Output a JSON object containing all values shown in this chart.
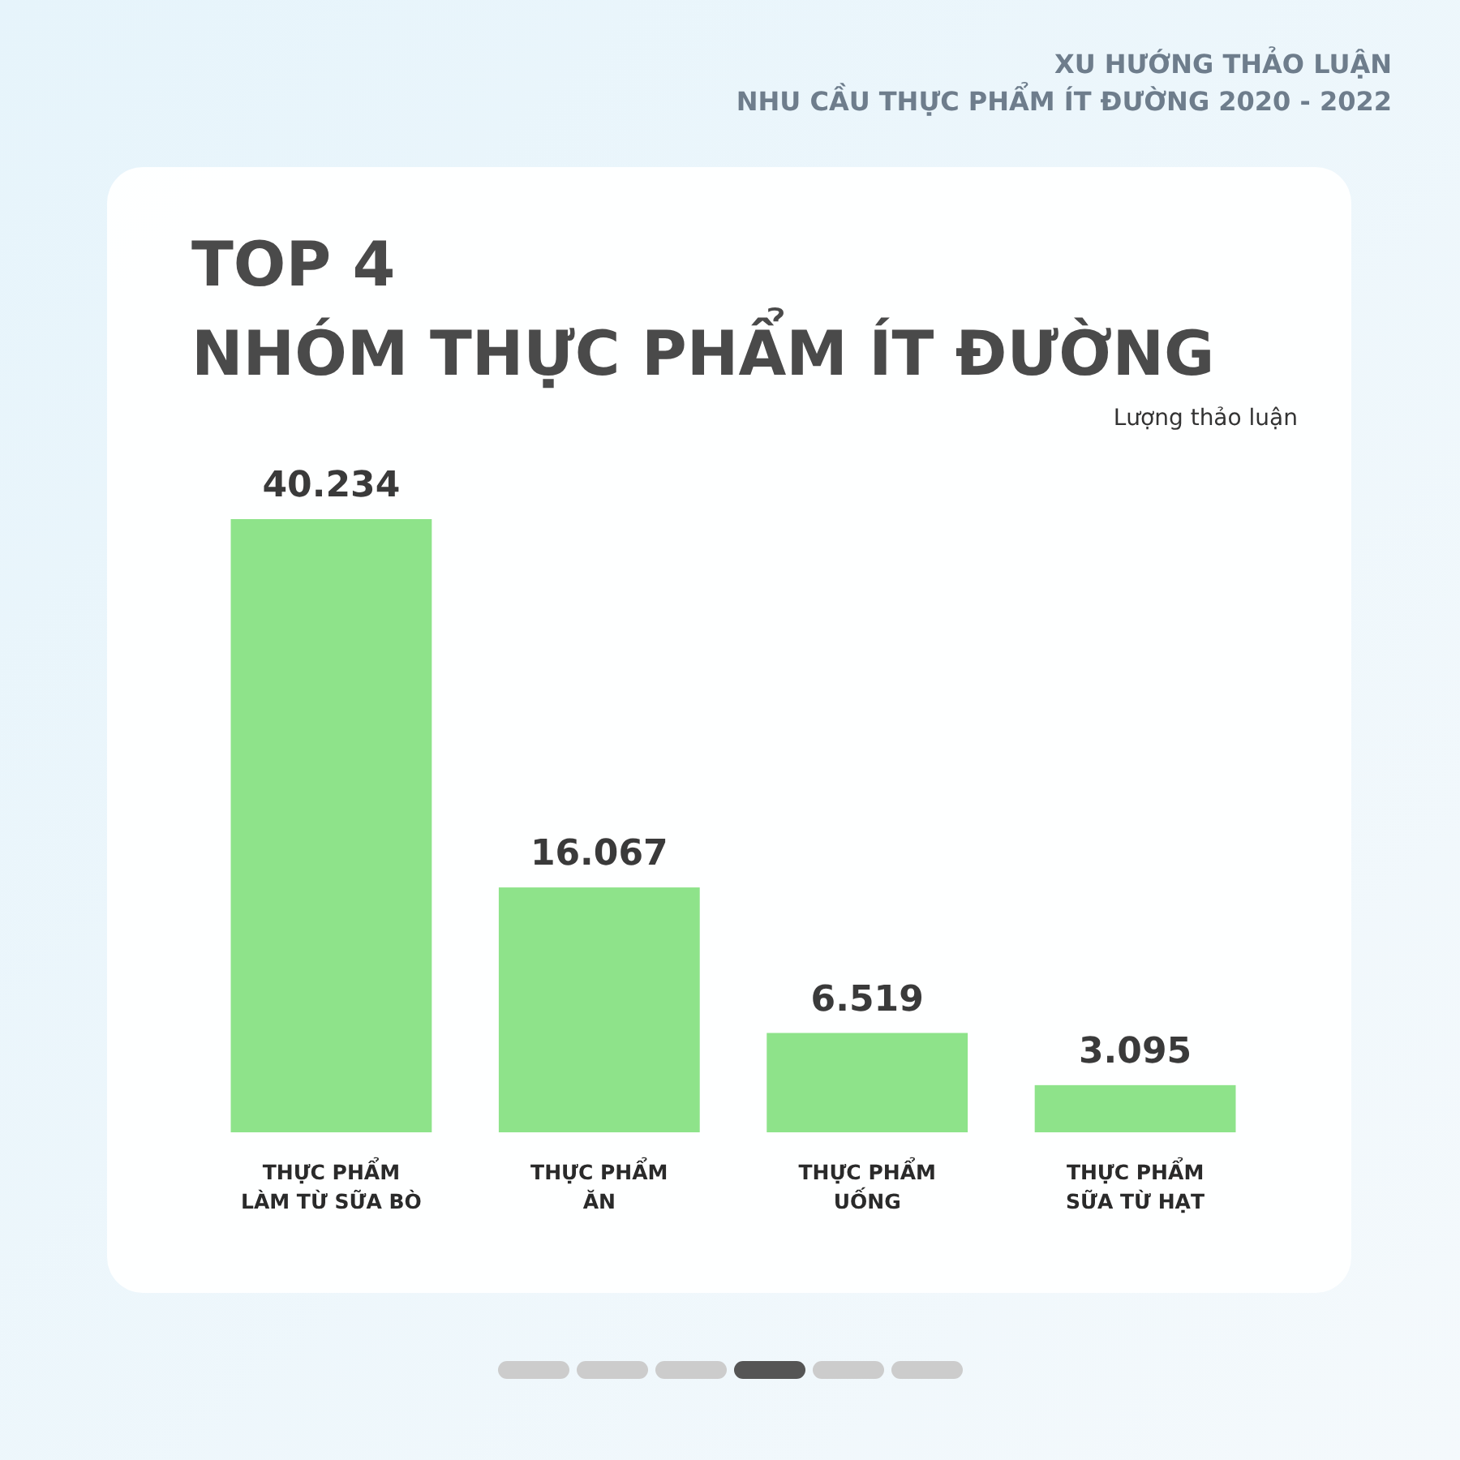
{
  "chart_data": {
    "type": "bar",
    "title": "TOP 4\nNHÓM THỰC PHẨM ÍT ĐƯỜNG",
    "subtitle": "XU HƯỚNG THẢO LUẬN\nNHU CẦU THỰC PHẨM ÍT ĐƯỜNG 2020 - 2022",
    "ylabel": "Lượng thảo luận",
    "categories": [
      "THỰC PHẨM\nLÀM TỪ SỮA BÒ",
      "THỰC PHẨM\nĂN",
      "THỰC PHẨM\nUỐNG",
      "THỰC PHẨM\nSỮA TỪ HẠT"
    ],
    "values": [
      40234,
      16067,
      6519,
      3095
    ],
    "value_labels": [
      "40.234",
      "16.067",
      "6.519",
      "3.095"
    ],
    "color": "#8ee38a"
  }
}
